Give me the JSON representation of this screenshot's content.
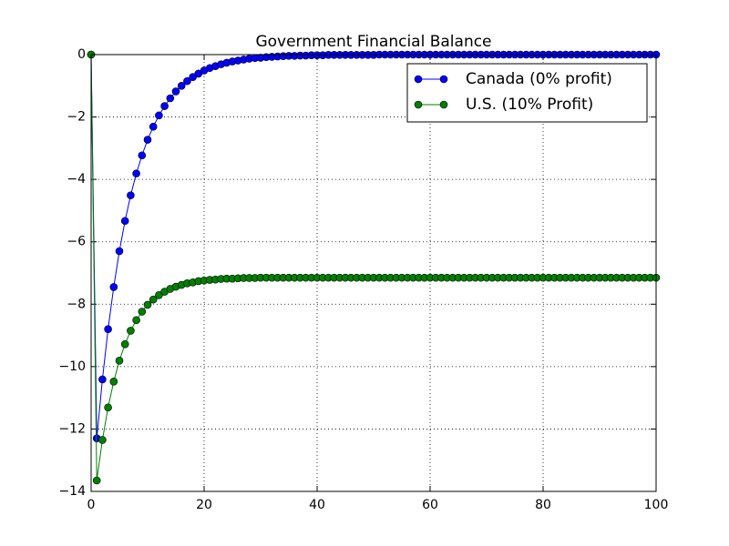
{
  "chart_data": {
    "type": "line",
    "title": "Government Financial Balance",
    "x": [
      0,
      1,
      2,
      3,
      4,
      5,
      6,
      7,
      8,
      9,
      10,
      11,
      12,
      13,
      14,
      15,
      16,
      17,
      18,
      19,
      20,
      21,
      22,
      23,
      24,
      25,
      26,
      27,
      28,
      29,
      30,
      31,
      32,
      33,
      34,
      35,
      36,
      37,
      38,
      39,
      40,
      41,
      42,
      43,
      44,
      45,
      46,
      47,
      48,
      49,
      50,
      51,
      52,
      53,
      54,
      55,
      56,
      57,
      58,
      59,
      60,
      61,
      62,
      63,
      64,
      65,
      66,
      67,
      68,
      69,
      70,
      71,
      72,
      73,
      74,
      75,
      76,
      77,
      78,
      79,
      80,
      81,
      82,
      83,
      84,
      85,
      86,
      87,
      88,
      89,
      90,
      91,
      92,
      93,
      94,
      95,
      96,
      97,
      98,
      99,
      100
    ],
    "series": [
      {
        "name": "Canada (0% profit)",
        "color": "#0000ff",
        "values": [
          0,
          -12.3,
          -10.41,
          -8.8,
          -7.45,
          -6.3,
          -5.33,
          -4.51,
          -3.81,
          -3.23,
          -2.73,
          -2.31,
          -1.95,
          -1.65,
          -1.4,
          -1.18,
          -1.0,
          -0.85,
          -0.72,
          -0.61,
          -0.51,
          -0.43,
          -0.37,
          -0.31,
          -0.26,
          -0.22,
          -0.19,
          -0.16,
          -0.13,
          -0.11,
          -0.1,
          -0.08,
          -0.07,
          -0.06,
          -0.05,
          -0.04,
          -0.04,
          -0.03,
          -0.03,
          -0.02,
          -0.02,
          -0.02,
          -0.01,
          -0.01,
          -0.01,
          -0.01,
          -0.01,
          -0.01,
          -0.01,
          -0.01,
          -0.01,
          0,
          0,
          0,
          0,
          0,
          0,
          0,
          0,
          0,
          0,
          0,
          0,
          0,
          0,
          0,
          0,
          0,
          0,
          0,
          0,
          0,
          0,
          0,
          0,
          0,
          0,
          0,
          0,
          0,
          0,
          0,
          0,
          0,
          0,
          0,
          0,
          0,
          0,
          0,
          0,
          0,
          0,
          0,
          0,
          0,
          0,
          0,
          0,
          0,
          0
        ]
      },
      {
        "name": "U.S. (10% Profit)",
        "color": "#008000",
        "values": [
          0,
          -13.65,
          -12.35,
          -11.31,
          -10.48,
          -9.81,
          -9.28,
          -8.85,
          -8.51,
          -8.24,
          -8.02,
          -7.85,
          -7.71,
          -7.6,
          -7.51,
          -7.44,
          -7.38,
          -7.33,
          -7.3,
          -7.26,
          -7.24,
          -7.22,
          -7.21,
          -7.19,
          -7.18,
          -7.18,
          -7.17,
          -7.16,
          -7.16,
          -7.16,
          -7.15,
          -7.15,
          -7.15,
          -7.15,
          -7.15,
          -7.15,
          -7.15,
          -7.15,
          -7.15,
          -7.15,
          -7.15,
          -7.15,
          -7.15,
          -7.15,
          -7.15,
          -7.15,
          -7.15,
          -7.15,
          -7.15,
          -7.15,
          -7.15,
          -7.15,
          -7.15,
          -7.15,
          -7.15,
          -7.15,
          -7.15,
          -7.15,
          -7.15,
          -7.15,
          -7.15,
          -7.15,
          -7.15,
          -7.15,
          -7.15,
          -7.15,
          -7.15,
          -7.15,
          -7.15,
          -7.15,
          -7.15,
          -7.15,
          -7.15,
          -7.15,
          -7.15,
          -7.15,
          -7.15,
          -7.15,
          -7.15,
          -7.15,
          -7.15,
          -7.15,
          -7.15,
          -7.15,
          -7.15,
          -7.15,
          -7.15,
          -7.15,
          -7.15,
          -7.15,
          -7.15,
          -7.15,
          -7.15,
          -7.15,
          -7.15,
          -7.15,
          -7.15,
          -7.15,
          -7.15,
          -7.15,
          -7.15
        ]
      }
    ],
    "xlim": [
      0,
      100
    ],
    "xticks": [
      0,
      20,
      40,
      60,
      80,
      100
    ],
    "ylim": [
      -14,
      0
    ],
    "yticks": [
      {
        "value": -14,
        "label": "−14"
      },
      {
        "value": -12,
        "label": "−12"
      },
      {
        "value": -10,
        "label": "−10"
      },
      {
        "value": -8,
        "label": "−8"
      },
      {
        "value": -6,
        "label": "−6"
      },
      {
        "value": -4,
        "label": "−4"
      },
      {
        "value": -2,
        "label": "−2"
      },
      0
    ],
    "grid": true,
    "legend": "upper right"
  }
}
